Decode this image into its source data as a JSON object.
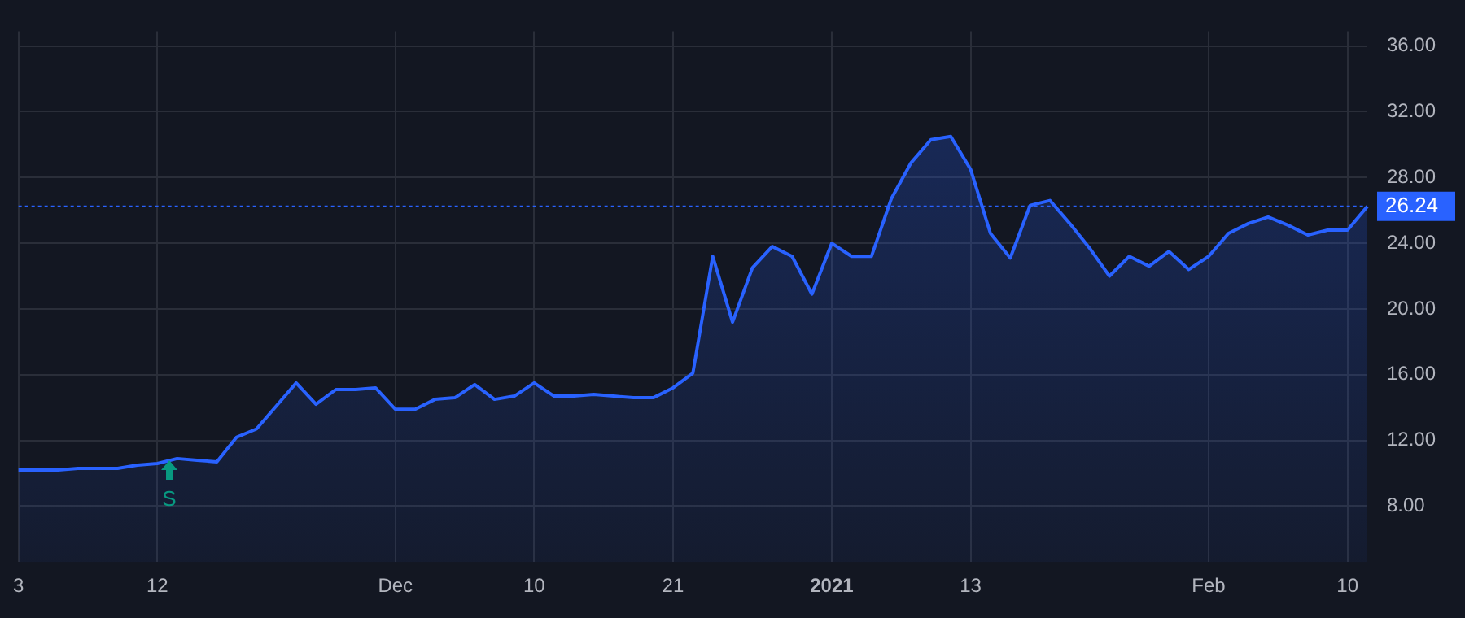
{
  "chart_data": {
    "type": "area",
    "categories": [
      "3",
      null,
      null,
      null,
      null,
      null,
      null,
      "12",
      null,
      null,
      null,
      null,
      null,
      null,
      null,
      null,
      null,
      null,
      null,
      "Dec",
      null,
      null,
      null,
      null,
      null,
      null,
      "10",
      null,
      null,
      null,
      null,
      null,
      null,
      "21",
      null,
      null,
      null,
      null,
      null,
      null,
      null,
      "2021",
      null,
      null,
      null,
      null,
      null,
      null,
      "13",
      null,
      null,
      null,
      null,
      null,
      null,
      null,
      null,
      null,
      null,
      null,
      "Feb",
      null,
      null,
      null,
      null,
      null,
      null,
      "10",
      null
    ],
    "series": [
      {
        "color": "#2962ff",
        "values": [
          10.2,
          10.2,
          10.2,
          10.3,
          10.3,
          10.3,
          10.5,
          10.6,
          10.9,
          10.8,
          10.7,
          12.2,
          12.7,
          14.1,
          15.5,
          14.2,
          15.1,
          15.1,
          15.2,
          13.9,
          13.9,
          14.5,
          14.6,
          15.4,
          14.5,
          14.7,
          15.5,
          14.7,
          14.7,
          14.8,
          14.7,
          14.6,
          14.6,
          15.2,
          16.1,
          23.2,
          19.2,
          22.5,
          23.8,
          23.2,
          20.9,
          24.0,
          23.2,
          23.2,
          26.7,
          28.9,
          30.3,
          30.5,
          28.5,
          24.6,
          23.1,
          26.3,
          26.6,
          25.2,
          23.7,
          22.0,
          23.2,
          22.6,
          23.5,
          22.4,
          23.2,
          24.6,
          25.2,
          25.6,
          25.1,
          24.5,
          24.8,
          24.8,
          26.24
        ]
      }
    ],
    "ylim": [
      4.6,
      36.9
    ],
    "yticks": [
      {
        "value": 8,
        "label": "8.00"
      },
      {
        "value": 12,
        "label": "12.00"
      },
      {
        "value": 16,
        "label": "16.00"
      },
      {
        "value": 20,
        "label": "20.00"
      },
      {
        "value": 24,
        "label": "24.00"
      },
      {
        "value": 28,
        "label": "28.00"
      },
      {
        "value": 32,
        "label": "32.00"
      },
      {
        "value": 36,
        "label": "36.00"
      }
    ],
    "ref_lines": [
      {
        "axis": "y",
        "value": 26.24,
        "label": "26.24",
        "color": "#2962ff",
        "line_style": "dotted"
      }
    ],
    "annotations": [
      "S"
    ],
    "grid": true,
    "legend": false,
    "marker": "none"
  }
}
